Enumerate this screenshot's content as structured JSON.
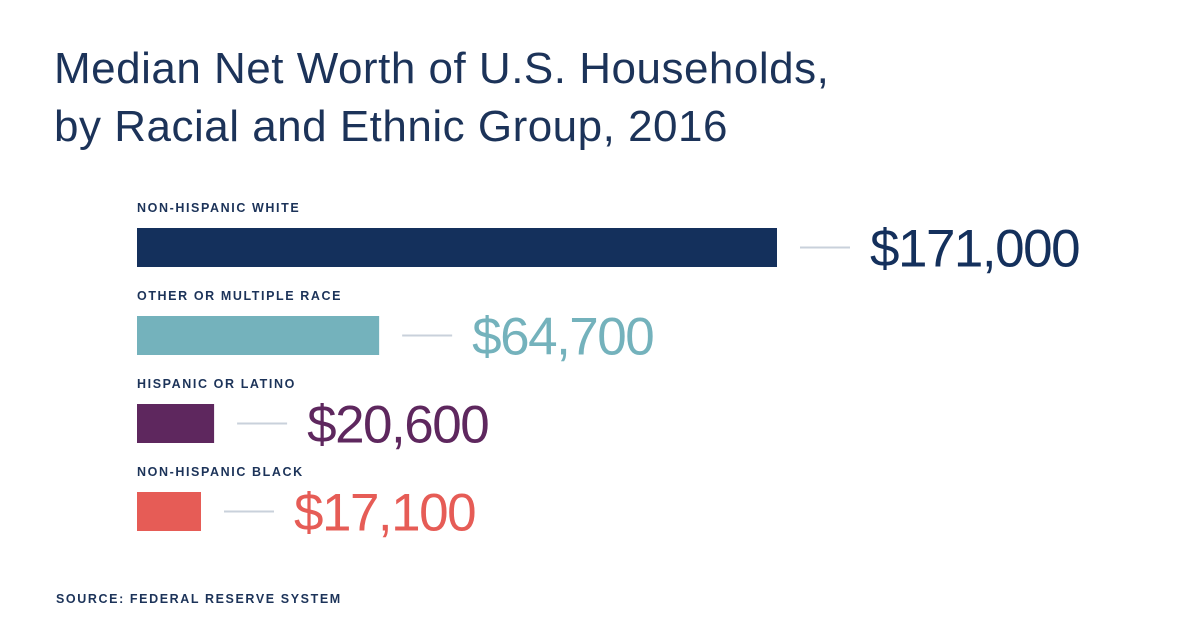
{
  "chart_data": {
    "type": "bar",
    "orientation": "horizontal",
    "title_lines": [
      "Median Net Worth of U.S. Households,",
      "by Racial and Ethnic Group, 2016"
    ],
    "categories": [
      "NON-HISPANIC WHITE",
      "OTHER OR MULTIPLE RACE",
      "HISPANIC OR LATINO",
      "NON-HISPANIC BLACK"
    ],
    "values": [
      171000,
      64700,
      20600,
      17100
    ],
    "value_labels": [
      "$171,000",
      "$64,700",
      "$20,600",
      "$17,100"
    ],
    "colors": [
      "#14305c",
      "#74b2bc",
      "#5e275e",
      "#e65c56"
    ],
    "connector_color": "#c9d1db",
    "xlim": [
      0,
      171000
    ],
    "grid": false,
    "source": "SOURCE: FEDERAL RESERVE SYSTEM"
  }
}
